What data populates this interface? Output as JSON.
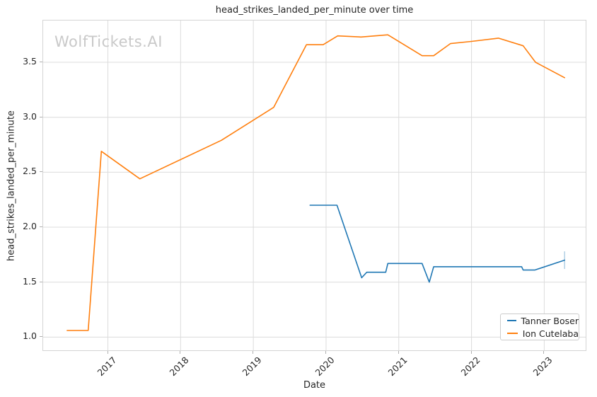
{
  "watermark": "WolfTickets.AI",
  "colors": {
    "series_blue": "#1f77b4",
    "series_orange": "#ff7f0e",
    "grid": "#dcdcdc",
    "axis_border": "#d4d4d4",
    "tick_mark": "#b0b0b0",
    "text": "#262626",
    "watermark": "#c9c9c9"
  },
  "chart_data": {
    "type": "line",
    "title": "head_strikes_landed_per_minute over time",
    "xlabel": "Date",
    "ylabel": "head_strikes_landed_per_minute",
    "xlim": [
      2016.11,
      2023.57
    ],
    "ylim": [
      0.88,
      3.88
    ],
    "xticks": [
      "2017",
      "2018",
      "2019",
      "2020",
      "2021",
      "2022",
      "2023"
    ],
    "yticks": [
      "1.0",
      "1.5",
      "2.0",
      "2.5",
      "3.0",
      "3.5"
    ],
    "grid": true,
    "legend_position": "lower right",
    "series": [
      {
        "name": "Tanner Boser",
        "color": "#1f77b4",
        "x": [
          2019.78,
          2020.15,
          2020.49,
          2020.56,
          2020.82,
          2020.85,
          2021.32,
          2021.42,
          2021.48,
          2022.69,
          2022.71,
          2022.87,
          2023.28
        ],
        "y": [
          2.2,
          2.2,
          1.54,
          1.59,
          1.59,
          1.67,
          1.67,
          1.5,
          1.64,
          1.64,
          1.61,
          1.61,
          1.7
        ]
      },
      {
        "name": "Ion Cutelaba",
        "color": "#ff7f0e",
        "x": [
          2016.44,
          2016.73,
          2016.91,
          2017.44,
          2018.56,
          2019.28,
          2019.73,
          2019.96,
          2020.16,
          2020.48,
          2020.85,
          2021.32,
          2021.48,
          2021.71,
          2022.0,
          2022.37,
          2022.71,
          2022.88,
          2023.28
        ],
        "y": [
          1.06,
          1.06,
          2.69,
          2.44,
          2.79,
          3.09,
          3.66,
          3.66,
          3.74,
          3.73,
          3.75,
          3.56,
          3.56,
          3.67,
          3.69,
          3.72,
          3.65,
          3.5,
          3.36
        ]
      }
    ],
    "end_marker": {
      "series": "Tanner Boser",
      "x": 2023.28,
      "y_low": 1.62,
      "y_high": 1.78,
      "color": "#1f77b4",
      "opacity": 0.35
    }
  }
}
